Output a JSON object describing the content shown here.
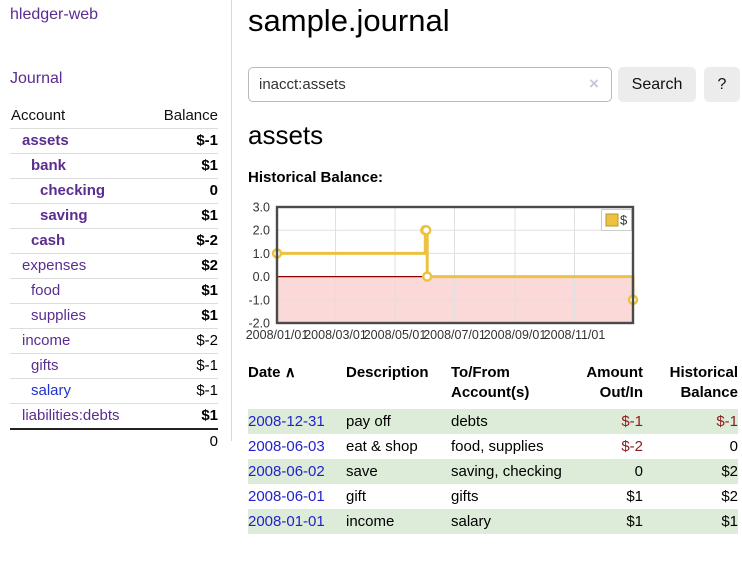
{
  "app": {
    "title": "hledger-web"
  },
  "sidebar": {
    "journal_label": "Journal",
    "table": {
      "headers": {
        "account": "Account",
        "balance": "Balance"
      },
      "rows": [
        {
          "account": "assets",
          "balance": "$-1",
          "level": 0,
          "in_account": true,
          "amount_class": "neg-strong"
        },
        {
          "account": "bank",
          "balance": "$1",
          "level": 1,
          "in_account": true,
          "amount_class": ""
        },
        {
          "account": "checking",
          "balance": "0",
          "level": 2,
          "in_account": true,
          "amount_class": ""
        },
        {
          "account": "saving",
          "balance": "$1",
          "level": 2,
          "in_account": true,
          "amount_class": ""
        },
        {
          "account": "cash",
          "balance": "$-2",
          "level": 1,
          "in_account": true,
          "amount_class": "neg-strong"
        },
        {
          "account": "expenses",
          "balance": "$2",
          "level": 0,
          "in_account": false,
          "amount_class": ""
        },
        {
          "account": "food",
          "balance": "$1",
          "level": 1,
          "in_account": false,
          "amount_class": ""
        },
        {
          "account": "supplies",
          "balance": "$1",
          "level": 1,
          "in_account": false,
          "amount_class": ""
        },
        {
          "account": "income",
          "balance": "$-2",
          "level": 0,
          "in_account": false,
          "amount_class": "neg-weak"
        },
        {
          "account": "gifts",
          "balance": "$-1",
          "level": 1,
          "in_account": false,
          "amount_class": "neg-weak"
        },
        {
          "account": "salary",
          "balance": "$-1",
          "level": 1,
          "in_account": false,
          "amount_class": "neg-weak",
          "unvisited": true
        },
        {
          "account": "liabilities:debts",
          "balance": "$1",
          "level": 0,
          "in_account": false,
          "amount_class": ""
        }
      ],
      "total": "0"
    }
  },
  "header": {
    "title": "sample.journal"
  },
  "search": {
    "value": "inacct:assets",
    "clear_icon": "×",
    "button_label": "Search",
    "help_label": "?"
  },
  "content": {
    "heading": "assets",
    "chart_label": "Historical Balance:"
  },
  "chart_data": {
    "type": "line",
    "step": "after",
    "title": "Historical Balance:",
    "x_range": [
      "2008-01-01",
      "2008-12-31"
    ],
    "ylim": [
      -2,
      3
    ],
    "grid": true,
    "legend_position": "top-right",
    "zero_line_color": "#8b0000",
    "negative_region_color": "#fbd9d9",
    "yticks": [
      {
        "v": 3,
        "label": "3.0"
      },
      {
        "v": 2,
        "label": "2.0"
      },
      {
        "v": 1,
        "label": "1.0"
      },
      {
        "v": 0,
        "label": "0.0"
      },
      {
        "v": -1,
        "label": "-1.0"
      },
      {
        "v": -2,
        "label": "-2.0"
      }
    ],
    "xticks": [
      {
        "date": "2008-01-01",
        "label": "2008/01/01"
      },
      {
        "date": "2008-03-01",
        "label": "2008/03/01"
      },
      {
        "date": "2008-05-01",
        "label": "2008/05/01"
      },
      {
        "date": "2008-07-01",
        "label": "2008/07/01"
      },
      {
        "date": "2008-09-01",
        "label": "2008/09/01"
      },
      {
        "date": "2008-11-01",
        "label": "2008/11/01"
      }
    ],
    "series": [
      {
        "name": "$",
        "color": "#EDC240",
        "points": [
          [
            "2008-01-01",
            1
          ],
          [
            "2008-06-01",
            2
          ],
          [
            "2008-06-02",
            2
          ],
          [
            "2008-06-03",
            0
          ],
          [
            "2008-12-31",
            -1
          ]
        ]
      }
    ]
  },
  "register": {
    "headers": {
      "date": "Date",
      "sort_icon": "∧",
      "description": "Description",
      "tofrom_line1": "To/From",
      "tofrom_line2": "Account(s)",
      "amount_line1": "Amount",
      "amount_line2": "Out/In",
      "historical_line1": "Historical",
      "historical_line2": "Balance"
    },
    "rows": [
      {
        "date": "2008-12-31",
        "description": "pay off",
        "accounts": [
          "debts"
        ],
        "amount": "$-1",
        "amount_negative": true,
        "balance": "$-1",
        "balance_negative": true
      },
      {
        "date": "2008-06-03",
        "description": "eat & shop",
        "accounts": [
          "food",
          "supplies"
        ],
        "amount": "$-2",
        "amount_negative": true,
        "balance": "0",
        "balance_negative": false
      },
      {
        "date": "2008-06-02",
        "description": "save",
        "accounts": [
          "saving",
          "checking"
        ],
        "amount": "0",
        "amount_negative": false,
        "balance": "$2",
        "balance_negative": false
      },
      {
        "date": "2008-06-01",
        "description": "gift",
        "accounts": [
          "gifts"
        ],
        "amount": "$1",
        "amount_negative": false,
        "balance": "$2",
        "balance_negative": false
      },
      {
        "date": "2008-01-01",
        "description": "income",
        "accounts": [
          "salary"
        ],
        "amount": "$1",
        "amount_negative": false,
        "balance": "$1",
        "balance_negative": false
      }
    ]
  }
}
